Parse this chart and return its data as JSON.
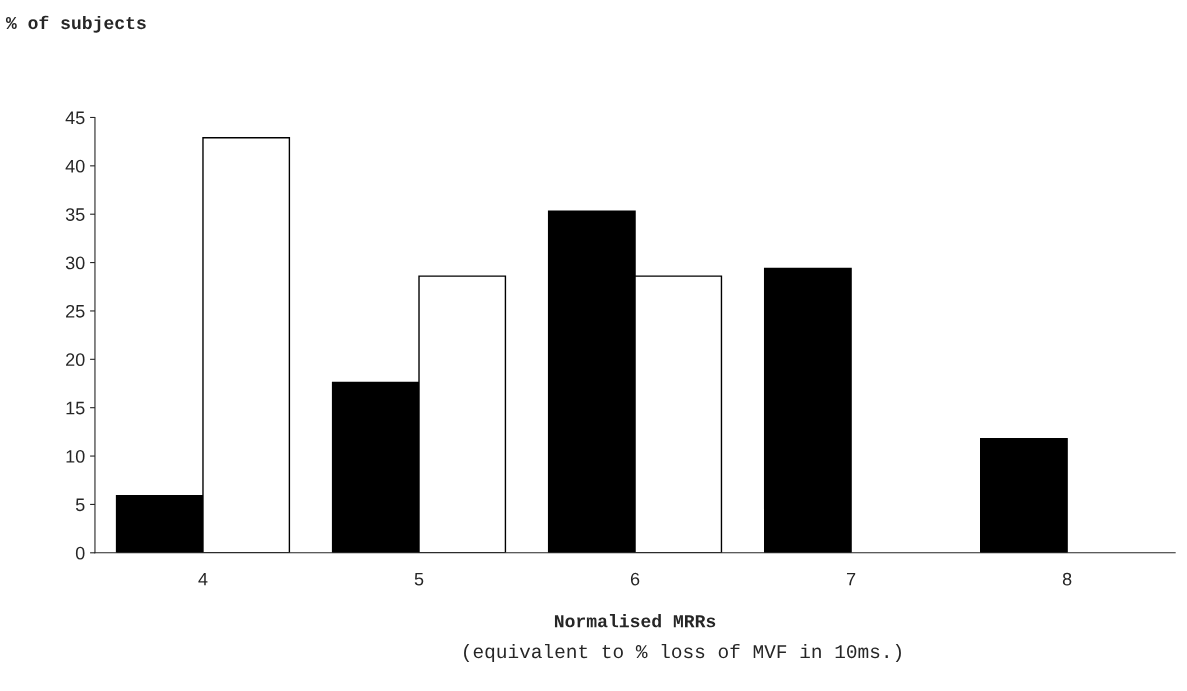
{
  "chart_data": {
    "type": "bar",
    "ylabel": "% of subjects",
    "xlabel": "Normalised MRRs",
    "annotations": [
      "(equivalent to % loss of MVF in 10ms.)"
    ],
    "categories": [
      "4",
      "5",
      "6",
      "7",
      "8"
    ],
    "series": [
      {
        "color": "#000000",
        "values": [
          5.9,
          17.6,
          35.3,
          29.4,
          11.8
        ]
      },
      {
        "color": "#ffffff",
        "values": [
          42.9,
          28.6,
          28.6,
          0,
          0
        ]
      }
    ],
    "ylim": [
      0,
      45
    ],
    "yticks": [
      0,
      5,
      10,
      15,
      20,
      25,
      30,
      35,
      40,
      45
    ],
    "grid": false,
    "legend": false
  }
}
